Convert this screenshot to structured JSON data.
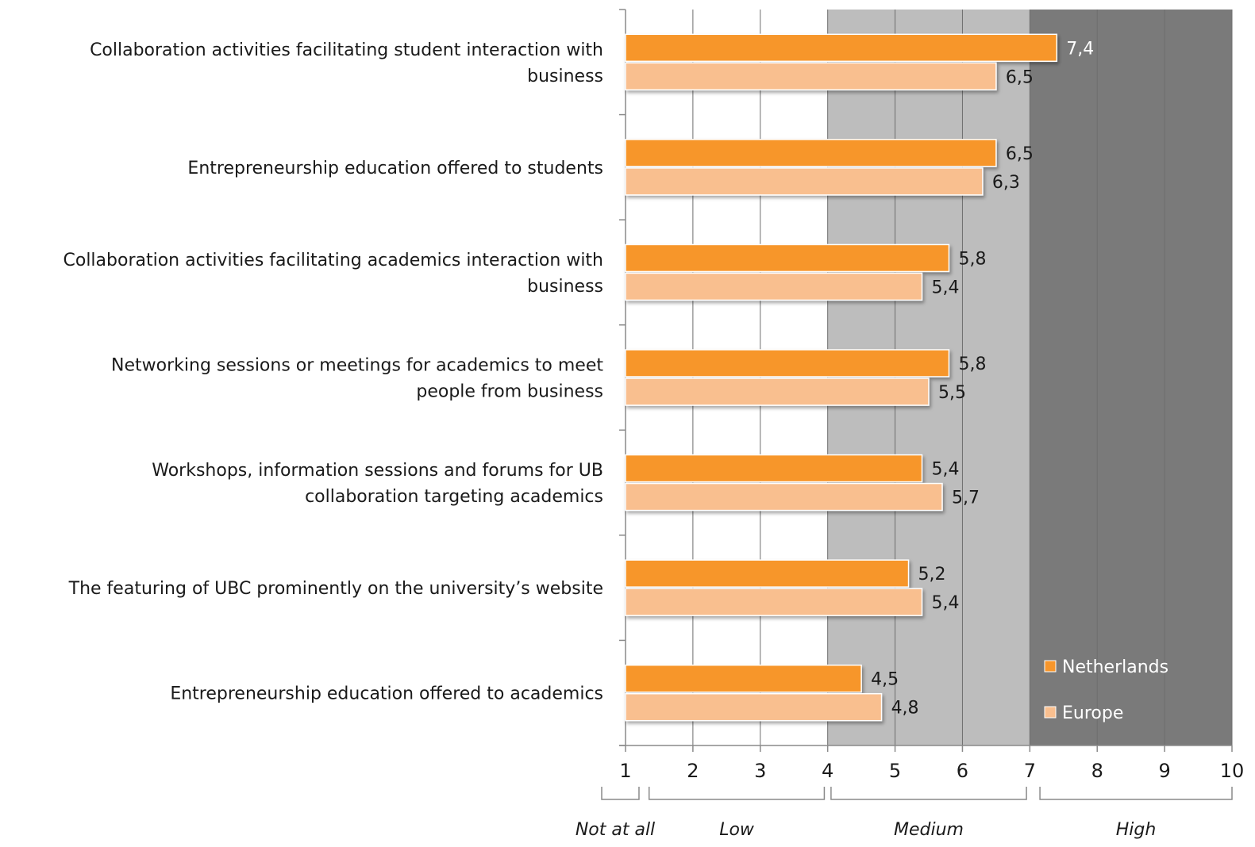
{
  "chart_data": {
    "type": "bar",
    "orientation": "horizontal",
    "categories": [
      [
        "Collaboration activities facilitating student interaction with",
        "business"
      ],
      [
        "Entrepreneurship education offered to students"
      ],
      [
        "Collaboration activities facilitating academics interaction with",
        "business"
      ],
      [
        "Networking sessions or meetings for academics to meet",
        "people from business"
      ],
      [
        "Workshops, information sessions and forums for UB",
        "collaboration targeting academics"
      ],
      [
        "The featuring of UBC prominently on the university’s website"
      ],
      [
        "Entrepreneurship education offered to academics"
      ]
    ],
    "series": [
      {
        "name": "Netherlands",
        "color": "#f7962b",
        "values": [
          7.4,
          6.5,
          5.8,
          5.8,
          5.4,
          5.2,
          4.5
        ],
        "value_labels": [
          "7,4",
          "6,5",
          "5,8",
          "5,8",
          "5,4",
          "5,2",
          "4,5"
        ]
      },
      {
        "name": "Europe",
        "color": "#f9bf8f",
        "values": [
          6.5,
          6.3,
          5.4,
          5.5,
          5.7,
          5.4,
          4.8
        ],
        "value_labels": [
          "6,5",
          "6,3",
          "5,4",
          "5,5",
          "5,7",
          "5,4",
          "4,8"
        ]
      }
    ],
    "xlim": [
      1,
      10
    ],
    "xticks": [
      1,
      2,
      3,
      4,
      5,
      6,
      7,
      8,
      9,
      10
    ],
    "bands": [
      {
        "label": "Not at all",
        "from": 1,
        "to": 1.2,
        "color": "#ffffff"
      },
      {
        "label": "Low",
        "from": 1.2,
        "to": 4,
        "color": "#ffffff"
      },
      {
        "label": "Medium",
        "from": 4,
        "to": 7,
        "color": "#bdbdbd"
      },
      {
        "label": "High",
        "from": 7,
        "to": 10,
        "color": "#7a7a7a"
      }
    ],
    "grid": true,
    "legend_position": "bottom-right",
    "title": "",
    "xlabel": "",
    "ylabel": ""
  }
}
